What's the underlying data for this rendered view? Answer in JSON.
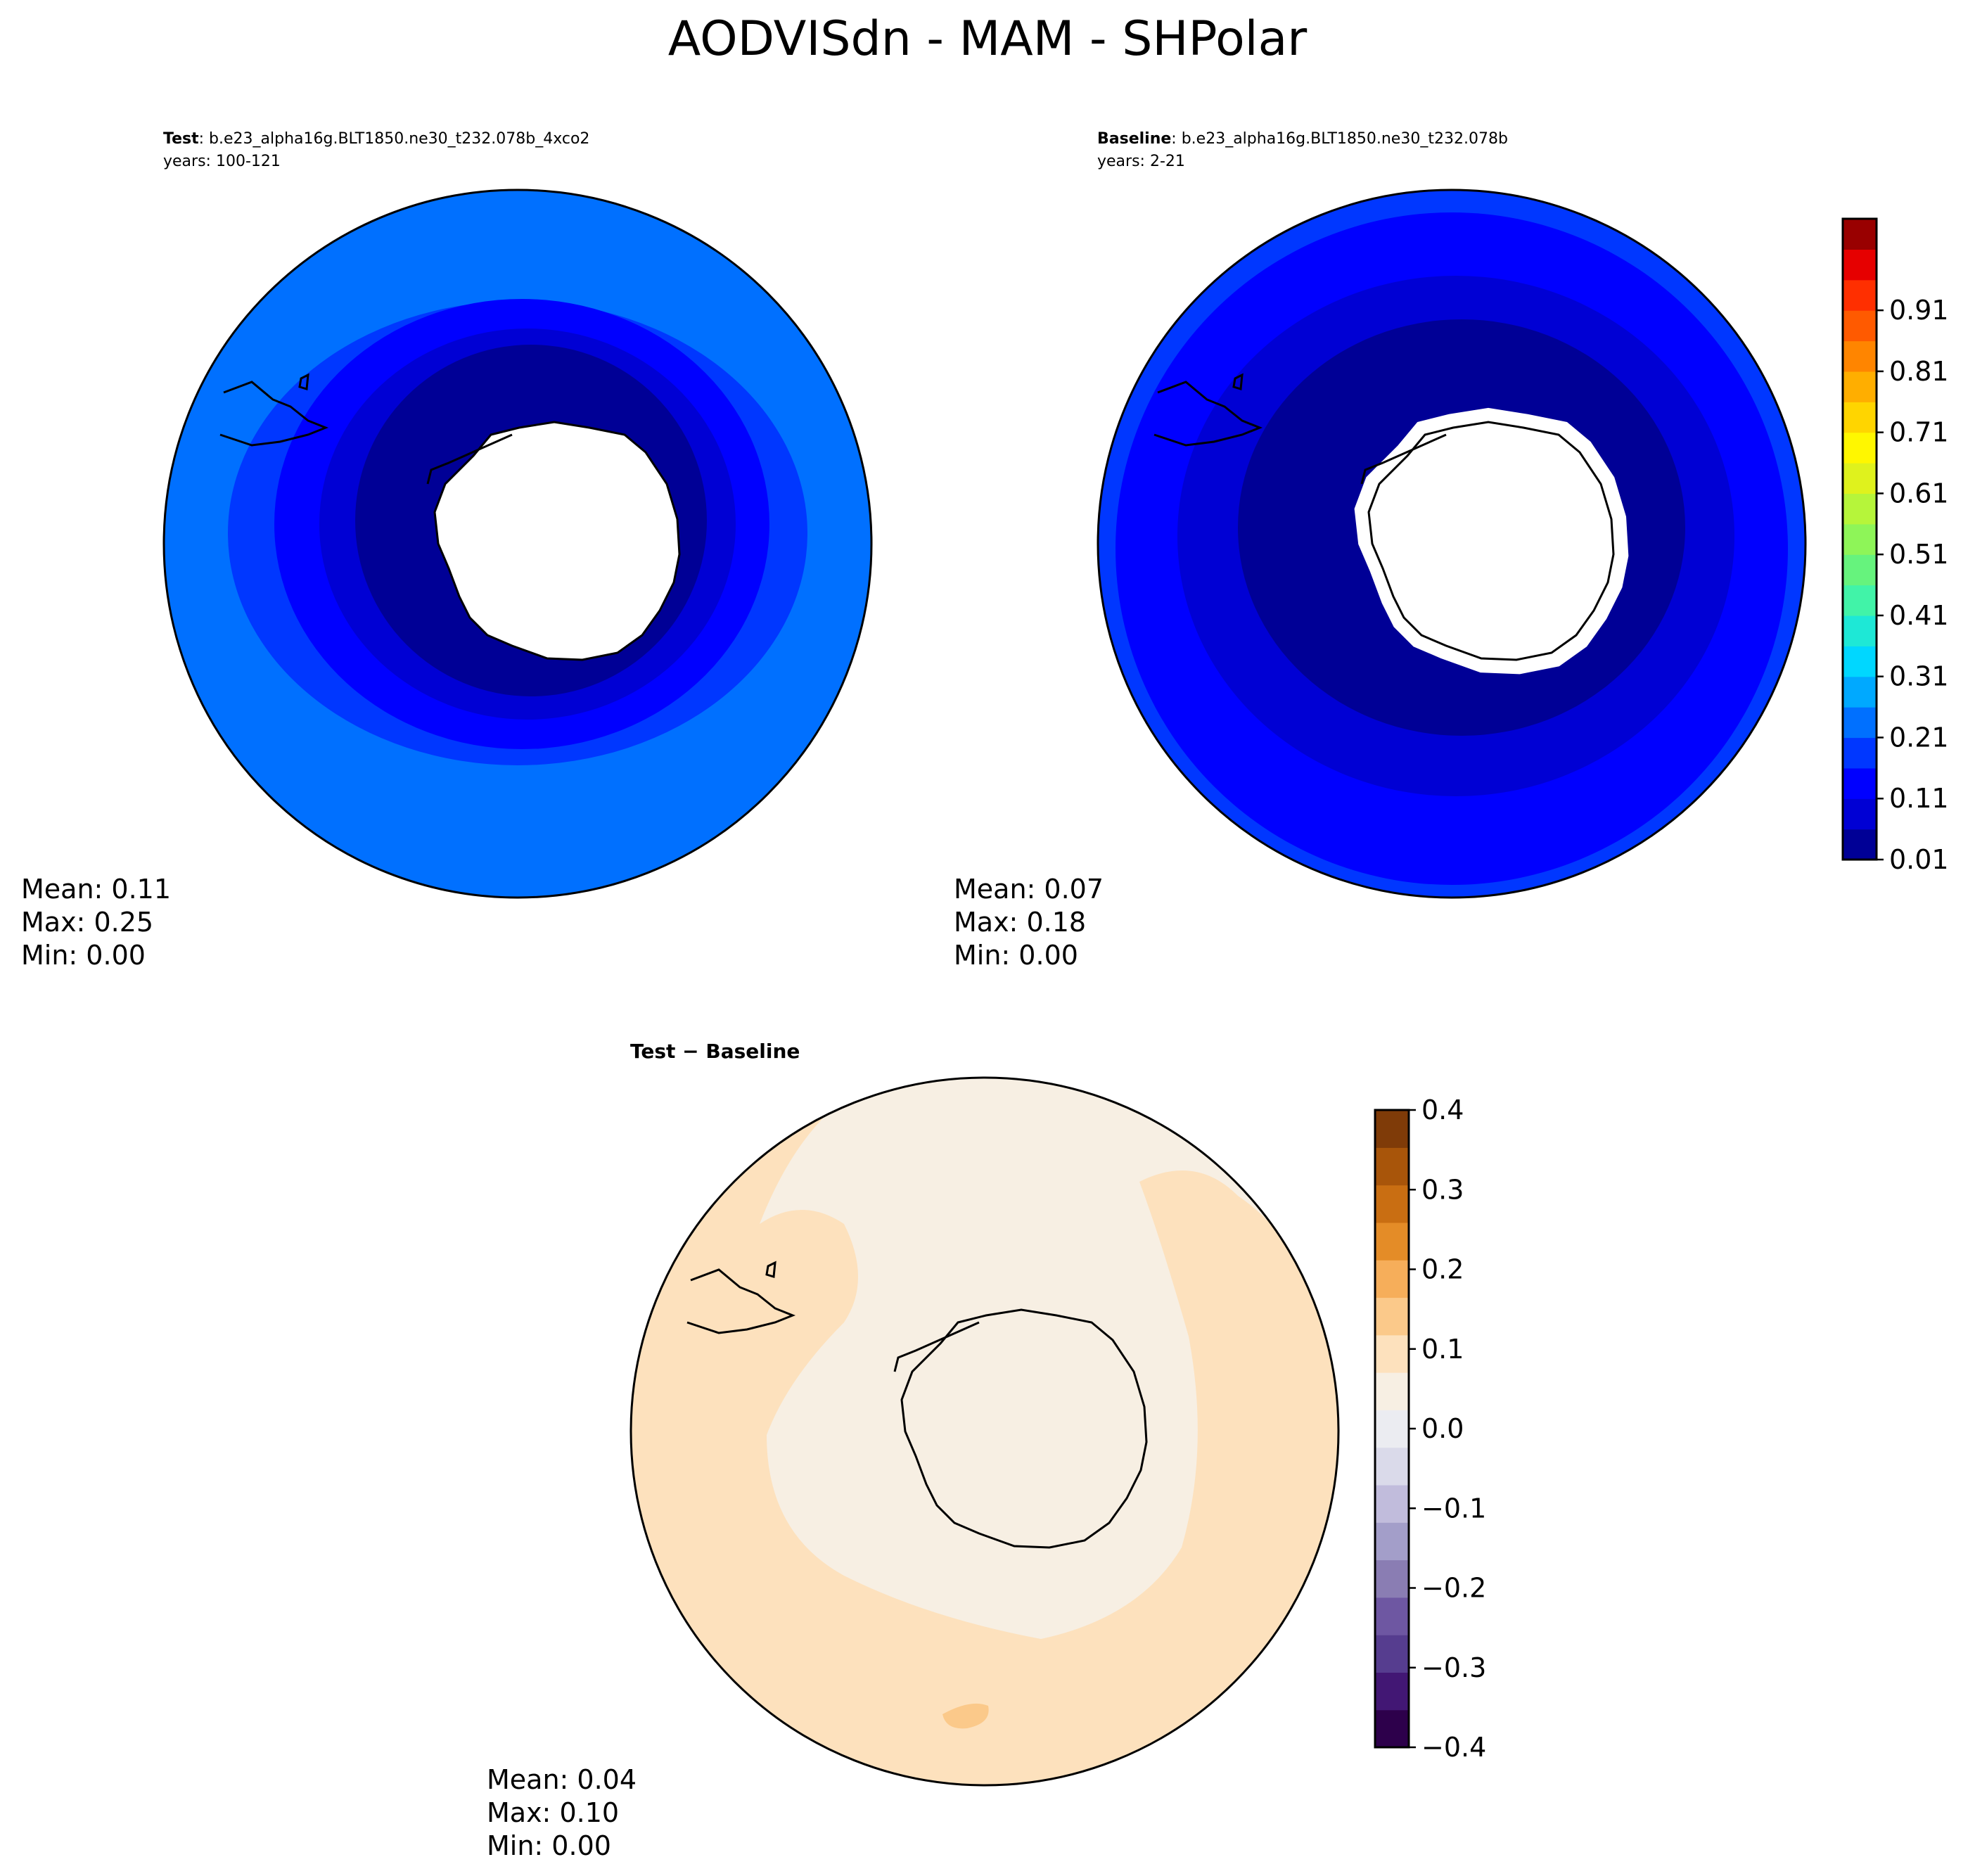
{
  "figure": {
    "title": "AODVISdn - MAM - SHPolar"
  },
  "panels": {
    "test": {
      "label_bold": "Test",
      "case": ": b.e23_alpha16g.BLT1850.ne30_t232.078b_4xco2",
      "years": "years: 100-121",
      "stats": {
        "mean": "Mean:  0.11",
        "max": "Max:  0.25",
        "min": "Min:  0.00"
      }
    },
    "baseline": {
      "label_bold": "Baseline",
      "case": ": b.e23_alpha16g.BLT1850.ne30_t232.078b",
      "years": "years: 2-21",
      "stats": {
        "mean": "Mean:  0.07",
        "max": "Max:  0.18",
        "min": "Min:  0.00"
      }
    },
    "diff": {
      "title": "Test − Baseline",
      "stats": {
        "mean": "Mean:  0.04",
        "max": "Max:  0.10",
        "min": "Min:  0.00"
      }
    }
  },
  "chart_data": [
    {
      "type": "heatmap",
      "name": "Test",
      "projection": "south-polar-stereographic",
      "region": "SHPolar",
      "variable": "AODVISdn",
      "season": "MAM",
      "mean": 0.11,
      "max": 0.25,
      "min": 0.0,
      "bands": [
        {
          "range": [
            0.01,
            0.06
          ],
          "color": "#000096",
          "zone": "near-coast ring"
        },
        {
          "range": [
            0.06,
            0.11
          ],
          "color": "#0000d4",
          "zone": "second ring"
        },
        {
          "range": [
            0.11,
            0.16
          ],
          "color": "#0000ff",
          "zone": "third ring"
        },
        {
          "range": [
            0.16,
            0.21
          ],
          "color": "#0037ff",
          "zone": "fourth ring"
        },
        {
          "range": [
            0.21,
            0.26
          ],
          "color": "#0070ff",
          "zone": "outer ring"
        }
      ]
    },
    {
      "type": "heatmap",
      "name": "Baseline",
      "projection": "south-polar-stereographic",
      "region": "SHPolar",
      "variable": "AODVISdn",
      "season": "MAM",
      "mean": 0.07,
      "max": 0.18,
      "min": 0.0,
      "bands": [
        {
          "range": [
            0.01,
            0.06
          ],
          "color": "#000096",
          "zone": "inner ring"
        },
        {
          "range": [
            0.06,
            0.11
          ],
          "color": "#0000d4",
          "zone": "middle ring"
        },
        {
          "range": [
            0.11,
            0.16
          ],
          "color": "#0000ff",
          "zone": "outer ring"
        },
        {
          "range": [
            0.16,
            0.21
          ],
          "color": "#0037ff",
          "zone": "rim"
        }
      ]
    },
    {
      "type": "heatmap",
      "name": "Test − Baseline",
      "projection": "south-polar-stereographic",
      "mean": 0.04,
      "max": 0.1,
      "min": 0.0,
      "bands": [
        {
          "range": [
            0.0,
            0.05
          ],
          "color": "#f7efe3",
          "zone": "inner area"
        },
        {
          "range": [
            0.05,
            0.1
          ],
          "color": "#fde1bd",
          "zone": "outer ring"
        },
        {
          "range": [
            0.1,
            0.15
          ],
          "color": "#fbc98a",
          "zone": "small patch"
        }
      ]
    }
  ],
  "colorbars": {
    "main": {
      "ticks": [
        "0.01",
        "0.11",
        "0.21",
        "0.31",
        "0.41",
        "0.51",
        "0.61",
        "0.71",
        "0.81",
        "0.91"
      ],
      "colors": [
        "#000096",
        "#0000d4",
        "#0000ff",
        "#0037ff",
        "#0070ff",
        "#00a9ff",
        "#00d7ff",
        "#1ee8d6",
        "#41f3a8",
        "#66f37d",
        "#8ef558",
        "#b6f53a",
        "#dff21d",
        "#fff700",
        "#ffd500",
        "#ffae00",
        "#ff8500",
        "#ff5a00",
        "#ff2f00",
        "#e60000",
        "#990000"
      ]
    },
    "diff": {
      "ticks": [
        "0.4",
        "0.3",
        "0.2",
        "0.1",
        "0.0",
        "−0.1",
        "−0.2",
        "−0.3",
        "−0.4"
      ],
      "colors": [
        "#2d004b",
        "#421774",
        "#563d8f",
        "#6e57a2",
        "#8a7db3",
        "#a39ec9",
        "#c1bcdc",
        "#dadaea",
        "#ebecf1",
        "#f7efe3",
        "#fde1bd",
        "#fbc98a",
        "#f6ae5a",
        "#e48c27",
        "#c96e12",
        "#a8550a",
        "#7f3b08"
      ]
    }
  }
}
